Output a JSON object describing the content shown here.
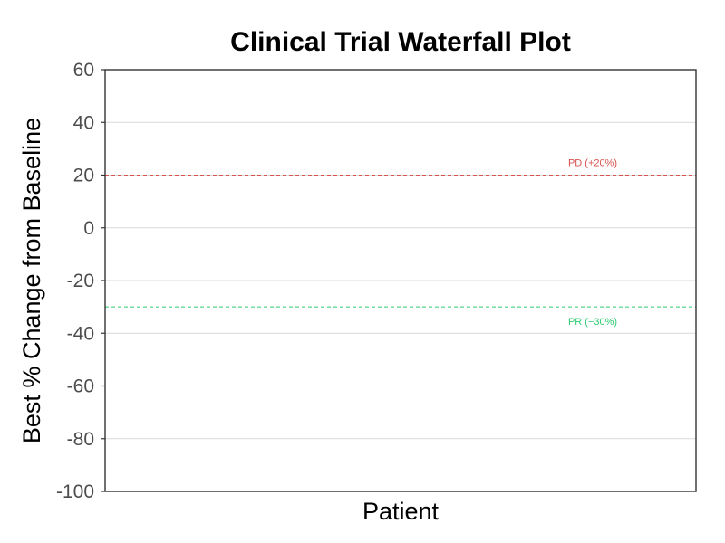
{
  "chart_data": {
    "type": "bar",
    "title": "Clinical Trial Waterfall Plot",
    "xlabel": "Patient",
    "ylabel": "Best % Change from Baseline",
    "ylim": [
      -100,
      60
    ],
    "yticks": [
      60,
      40,
      20,
      0,
      -20,
      -40,
      -60,
      -80,
      -100
    ],
    "categories": [],
    "values": [],
    "grid": true,
    "reference_lines": [
      {
        "label": "PD (+20%)",
        "value": 20,
        "color": "#d9534f"
      },
      {
        "label": "PR (−30%)",
        "value": -30,
        "color": "#2ecc71"
      }
    ]
  }
}
